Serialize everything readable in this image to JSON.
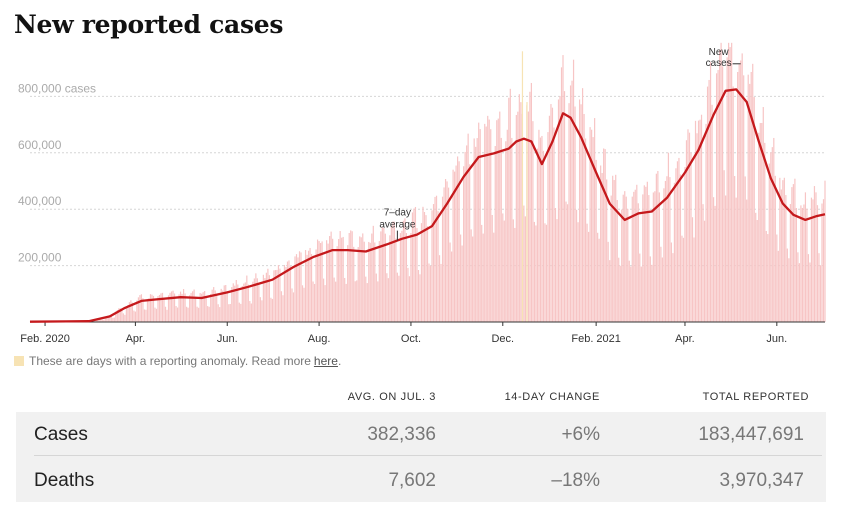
{
  "title": "New reported cases",
  "legend": {
    "text": "These are days with a reporting anomaly. Read more",
    "link": "here",
    "suffix": ".",
    "color": "#f7e3b4"
  },
  "colors": {
    "line": "#c5191c",
    "bars": "#f7c5c5",
    "anomaly": "#f7e3b4"
  },
  "chart_data": {
    "type": "bar",
    "title": "New reported cases",
    "ylim": [
      0,
      1000000
    ],
    "yticks": [
      {
        "value": 200000,
        "label": "200,000"
      },
      {
        "value": 400000,
        "label": "400,000"
      },
      {
        "value": 600000,
        "label": "600,000"
      },
      {
        "value": 800000,
        "label": "800,000 cases"
      }
    ],
    "xlim": [
      "2020-01-22",
      "2021-07-03"
    ],
    "xticks": [
      {
        "date": "2020-02-01",
        "label": "Feb. 2020"
      },
      {
        "date": "2020-04-01",
        "label": "Apr."
      },
      {
        "date": "2020-06-01",
        "label": "Jun."
      },
      {
        "date": "2020-08-01",
        "label": "Aug."
      },
      {
        "date": "2020-10-01",
        "label": "Oct."
      },
      {
        "date": "2020-12-01",
        "label": "Dec."
      },
      {
        "date": "2021-02-01",
        "label": "Feb. 2021"
      },
      {
        "date": "2021-04-01",
        "label": "Apr."
      },
      {
        "date": "2021-06-01",
        "label": "Jun."
      }
    ],
    "series": [
      {
        "name": "7-day average",
        "points": [
          [
            "2020-01-22",
            1000
          ],
          [
            "2020-02-15",
            2000
          ],
          [
            "2020-03-01",
            3000
          ],
          [
            "2020-03-15",
            20000
          ],
          [
            "2020-03-25",
            50000
          ],
          [
            "2020-04-05",
            75000
          ],
          [
            "2020-04-15",
            80000
          ],
          [
            "2020-05-01",
            88000
          ],
          [
            "2020-05-15",
            85000
          ],
          [
            "2020-06-01",
            105000
          ],
          [
            "2020-06-15",
            125000
          ],
          [
            "2020-07-01",
            150000
          ],
          [
            "2020-07-15",
            195000
          ],
          [
            "2020-07-28",
            230000
          ],
          [
            "2020-08-10",
            255000
          ],
          [
            "2020-08-20",
            255000
          ],
          [
            "2020-09-01",
            250000
          ],
          [
            "2020-09-15",
            275000
          ],
          [
            "2020-09-25",
            295000
          ],
          [
            "2020-10-05",
            310000
          ],
          [
            "2020-10-15",
            340000
          ],
          [
            "2020-10-25",
            420000
          ],
          [
            "2020-11-05",
            515000
          ],
          [
            "2020-11-15",
            585000
          ],
          [
            "2020-11-25",
            598000
          ],
          [
            "2020-12-05",
            615000
          ],
          [
            "2020-12-10",
            640000
          ],
          [
            "2020-12-15",
            650000
          ],
          [
            "2020-12-20",
            640000
          ],
          [
            "2020-12-27",
            560000
          ],
          [
            "2021-01-03",
            640000
          ],
          [
            "2021-01-10",
            740000
          ],
          [
            "2021-01-15",
            725000
          ],
          [
            "2021-01-22",
            655000
          ],
          [
            "2021-02-01",
            530000
          ],
          [
            "2021-02-10",
            420000
          ],
          [
            "2021-02-20",
            362000
          ],
          [
            "2021-03-01",
            385000
          ],
          [
            "2021-03-10",
            392000
          ],
          [
            "2021-03-20",
            440000
          ],
          [
            "2021-04-01",
            530000
          ],
          [
            "2021-04-10",
            610000
          ],
          [
            "2021-04-20",
            735000
          ],
          [
            "2021-04-28",
            820000
          ],
          [
            "2021-05-05",
            825000
          ],
          [
            "2021-05-12",
            780000
          ],
          [
            "2021-05-20",
            640000
          ],
          [
            "2021-05-28",
            510000
          ],
          [
            "2021-06-05",
            420000
          ],
          [
            "2021-06-12",
            380000
          ],
          [
            "2021-06-20",
            362000
          ],
          [
            "2021-06-27",
            375000
          ],
          [
            "2021-07-03",
            382336
          ]
        ]
      }
    ],
    "annotations": [
      {
        "text": [
          "7–day",
          "average"
        ],
        "date": "2020-09-22",
        "value": 285000
      },
      {
        "text": [
          "New",
          "cases"
        ],
        "date": "2021-04-30",
        "value": 905000
      }
    ]
  },
  "table": {
    "headers": [
      "AVG. ON JUL. 3",
      "14-DAY CHANGE",
      "TOTAL REPORTED"
    ],
    "rows": [
      {
        "label": "Cases",
        "avg": "382,336",
        "change": "+6%",
        "total": "183,447,691"
      },
      {
        "label": "Deaths",
        "avg": "7,602",
        "change": "–18%",
        "total": "3,970,347"
      }
    ]
  }
}
